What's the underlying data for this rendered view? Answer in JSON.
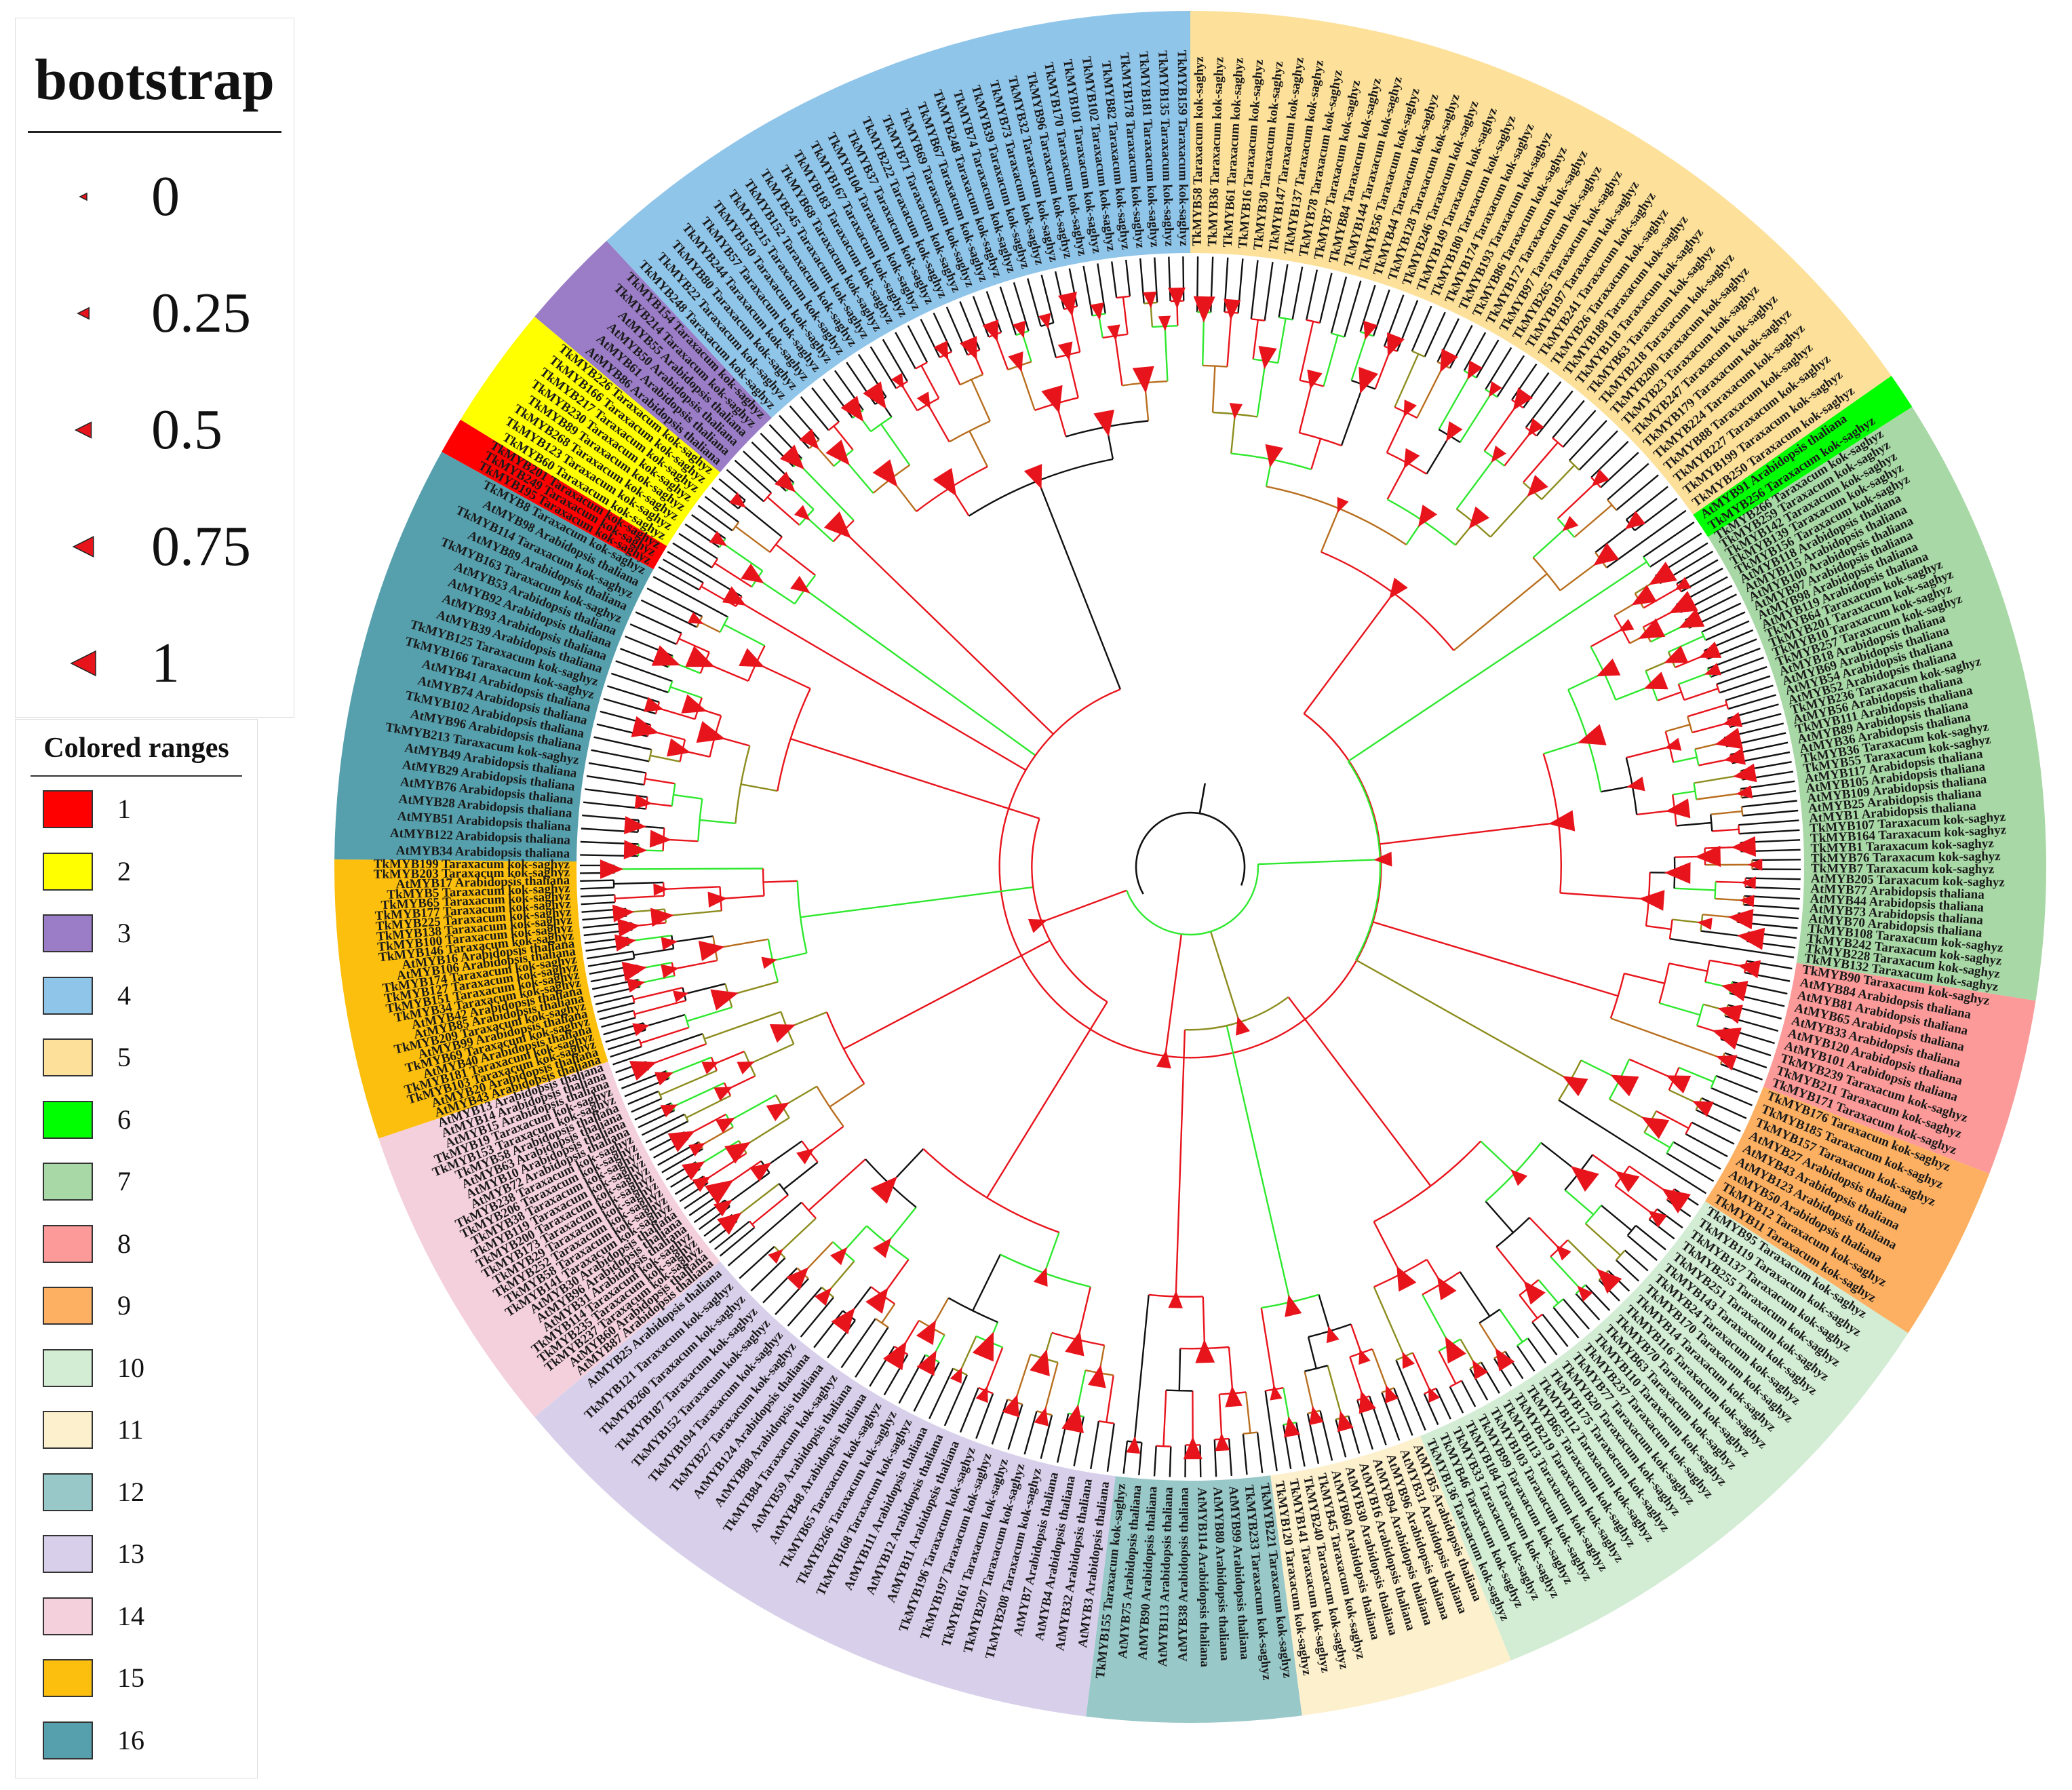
{
  "bootstrap_legend": {
    "title": "bootstrap",
    "entries": [
      {
        "label": "0",
        "value": 0
      },
      {
        "label": "0.25",
        "value": 0.25
      },
      {
        "label": "0.5",
        "value": 0.5
      },
      {
        "label": "0.75",
        "value": 0.75
      },
      {
        "label": "1",
        "value": 1
      }
    ],
    "marker_color": "#e8141c"
  },
  "colored_ranges_legend": {
    "title": "Colored ranges",
    "entries": [
      {
        "label": "1",
        "color": "#ff0000"
      },
      {
        "label": "2",
        "color": "#ffff00"
      },
      {
        "label": "3",
        "color": "#9a7dc6"
      },
      {
        "label": "4",
        "color": "#90c5ea"
      },
      {
        "label": "5",
        "color": "#fde19a"
      },
      {
        "label": "6",
        "color": "#00ff00"
      },
      {
        "label": "7",
        "color": "#a8d8a6"
      },
      {
        "label": "8",
        "color": "#fb9a99"
      },
      {
        "label": "9",
        "color": "#fdb062"
      },
      {
        "label": "10",
        "color": "#d3ecd4"
      },
      {
        "label": "11",
        "color": "#fdf0cd"
      },
      {
        "label": "12",
        "color": "#99c8c9"
      },
      {
        "label": "13",
        "color": "#d8d0ea"
      },
      {
        "label": "14",
        "color": "#f4d0dc"
      },
      {
        "label": "15",
        "color": "#fdbf0d"
      },
      {
        "label": "16",
        "color": "#56a0ad"
      }
    ]
  },
  "tree": {
    "branch_colors": {
      "high": "#e8141c",
      "mid": "#2ee82e",
      "brown": "#b86e1e",
      "olive": "#8c8c1e",
      "low": "#111111"
    },
    "clades": [
      {
        "group": 1,
        "start_deg": 299.0,
        "end_deg": 301.5,
        "labels": [
          "TkMYB195 Taraxacum kok-saghyz",
          "TkMYB249 Taraxacum kok-saghyz",
          "TkMYB201 Taraxacum kok-saghyz"
        ]
      },
      {
        "group": 2,
        "start_deg": 301.5,
        "end_deg": 310.0,
        "labels": [
          "TkMYB60 Taraxacum kok-saghyz",
          "TkMYB123 Taraxacum kok-saghyz",
          "TkMYB268 Taraxacum kok-saghyz",
          "TkMYB89 Taraxacum kok-saghyz",
          "TkMYB230 Taraxacum kok-saghyz",
          "TkMYB217 Taraxacum kok-saghyz",
          "TkMYB166 Taraxacum kok-saghyz",
          "TkMYB226 Taraxacum kok-saghyz"
        ]
      },
      {
        "group": 3,
        "start_deg": 310.0,
        "end_deg": 317.0,
        "labels": [
          "AtMYB86 Arabidopsis thaliana",
          "AtMYB61 Arabidopsis thaliana",
          "AtMYB50 Arabidopsis thaliana",
          "AtMYB55 Arabidopsis thaliana",
          "TkMYB214 Taraxacum kok-saghyz",
          "TkMYB154 Taraxacum kok-saghyz"
        ]
      },
      {
        "group": 4,
        "start_deg": 317.0,
        "end_deg": 360.0,
        "labels": [
          "TkMYB248 Taraxacum kok-saghyz",
          "TkMYB22 Taraxacum kok-saghyz",
          "TkMYB80 Taraxacum kok-saghyz",
          "TkMYB244 Taraxacum kok-saghyz",
          "TkMYB57 Taraxacum kok-saghyz",
          "TkMYB150 Taraxacum kok-saghyz",
          "TkMYB215 Taraxacum kok-saghyz",
          "TkMYB152 Taraxacum kok-saghyz",
          "TkMYB245 Taraxacum kok-saghyz",
          "TkMYB68 Taraxacum kok-saghyz",
          "TkMYB183 Taraxacum kok-saghyz",
          "TkMYB167 Taraxacum kok-saghyz",
          "TkMYB104 Taraxacum kok-saghyz",
          "TkMYB37 Taraxacum kok-saghyz",
          "TkMYB222 Taraxacum kok-saghyz",
          "TkMYB71 Taraxacum kok-saghyz",
          "TkMYB69 Taraxacum kok-saghyz",
          "TkMYB67 Taraxacum kok-saghyz",
          "TkMYB248 Taraxacum kok-saghyz",
          "TkMYB74 Taraxacum kok-saghyz",
          "TkMYB39 Taraxacum kok-saghyz",
          "TkMYB73 Taraxacum kok-saghyz",
          "TkMYB32 Taraxacum kok-saghyz",
          "TkMYB96 Taraxacum kok-saghyz",
          "TkMYB170 Taraxacum kok-saghyz",
          "TkMYB101 Taraxacum kok-saghyz",
          "TkMYB102 Taraxacum kok-saghyz",
          "TkMYB82 Taraxacum kok-saghyz",
          "TkMYB178 Taraxacum kok-saghyz",
          "TkMYB181 Taraxacum kok-saghyz",
          "TkMYB135 Taraxacum kok-saghyz",
          "TkMYB159 Taraxacum kok-saghyz"
        ]
      },
      {
        "group": 5,
        "start_deg": 0.0,
        "end_deg": 55.0,
        "labels": [
          "TkMYB58 Taraxacum kok-saghyz",
          "TkMYB36 Taraxacum kok-saghyz",
          "TkMYB61 Taraxacum kok-saghyz",
          "TkMYB16 Taraxacum kok-saghyz",
          "TkMYB30 Taraxacum kok-saghyz",
          "TkMYB147 Taraxacum kok-saghyz",
          "TkMYB137 Taraxacum kok-saghyz",
          "TkMYB78 Taraxacum kok-saghyz",
          "TkMYB7 Taraxacum kok-saghyz",
          "TkMYB84 Taraxacum kok-saghyz",
          "TkMYB144 Taraxacum kok-saghyz",
          "TkMYB56 Taraxacum kok-saghyz",
          "TkMYB44 Taraxacum kok-saghyz",
          "TkMYB128 Taraxacum kok-saghyz",
          "TkMYB246 Taraxacum kok-saghyz",
          "TkMYB149 Taraxacum kok-saghyz",
          "TkMYB180 Taraxacum kok-saghyz",
          "TkMYB174 Taraxacum kok-saghyz",
          "TkMYB193 Taraxacum kok-saghyz",
          "TkMYB86 Taraxacum kok-saghyz",
          "TkMYB172 Taraxacum kok-saghyz",
          "TkMYB97 Taraxacum kok-saghyz",
          "TkMYB265 Taraxacum kok-saghyz",
          "TkMYB197 Taraxacum kok-saghyz",
          "TkMYB241 Taraxacum kok-saghyz",
          "TkMYB26 Taraxacum kok-saghyz",
          "TkMYB188 Taraxacum kok-saghyz",
          "TkMYB118 Taraxacum kok-saghyz",
          "TkMYB63 Taraxacum kok-saghyz",
          "TkMYB218 Taraxacum kok-saghyz",
          "TkMYB200 Taraxacum kok-saghyz",
          "TkMYB23 Taraxacum kok-saghyz",
          "TkMYB247 Taraxacum kok-saghyz",
          "TkMYB179 Taraxacum kok-saghyz",
          "TkMYB224 Taraxacum kok-saghyz",
          "TkMYB88 Taraxacum kok-saghyz",
          "TkMYB227 Taraxacum kok-saghyz",
          "TkMYB199 Taraxacum kok-saghyz",
          "TkMYB250 Taraxacum kok-saghyz"
        ]
      },
      {
        "group": 6,
        "start_deg": 55.0,
        "end_deg": 57.5,
        "labels": [
          "AtMYB91 Arabidopsis thaliana",
          "TkMYB256 Taraxacum kok-saghyz"
        ]
      },
      {
        "group": 7,
        "start_deg": 57.5,
        "end_deg": 99.0,
        "labels": [
          "TkMYB266 Taraxacum kok-saghyz",
          "TkMYB259 Taraxacum kok-saghyz",
          "TkMYB142 Taraxacum kok-saghyz",
          "TkMYB139 Taraxacum kok-saghyz",
          "TkMYB156 Taraxacum kok-saghyz",
          "AtMYB118 Arabidopsis thaliana",
          "AtMYB115 Arabidopsis thaliana",
          "AtMYB100 Arabidopsis thaliana",
          "AtMYB97 Arabidopsis thaliana",
          "AtMYB98 Arabidopsis thaliana",
          "AtMYB119 Arabidopsis thaliana",
          "TkMYB64 Taraxacum kok-saghyz",
          "TkMYB201 Taraxacum kok-saghyz",
          "TkMYB10 Taraxacum kok-saghyz",
          "TkMYB257 Taraxacum kok-saghyz",
          "AtMYB18 Arabidopsis thaliana",
          "AtMYB69 Arabidopsis thaliana",
          "AtMYB54 Arabidopsis thaliana",
          "AtMYB52 Arabidopsis thaliana",
          "TkMYB236 Taraxacum kok-saghyz",
          "AtMYB56 Arabidopsis thaliana",
          "TkMYB111 Arabidopsis thaliana",
          "AtMYB89 Arabidopsis thaliana",
          "AtMYB36 Arabidopsis thaliana",
          "TkMYB36 Taraxacum kok-saghyz",
          "TkMYB55 Taraxacum kok-saghyz",
          "AtMYB117 Arabidopsis thaliana",
          "AtMYB105 Arabidopsis thaliana",
          "AtMYB109 Arabidopsis thaliana",
          "AtMYB25 Arabidopsis thaliana",
          "AtMYB1 Arabidopsis thaliana",
          "TkMYB107 Taraxacum kok-saghyz",
          "TkMYB164 Taraxacum kok-saghyz",
          "TkMYB1 Taraxacum kok-saghyz",
          "TkMYB76 Taraxacum kok-saghyz",
          "TkMYB7 Taraxacum kok-saghyz",
          "AtMYB205 Taraxacum kok-saghyz",
          "AtMYB77 Arabidopsis thaliana",
          "AtMYB44 Arabidopsis thaliana",
          "AtMYB73 Arabidopsis thaliana",
          "AtMYB70 Arabidopsis thaliana",
          "TkMYB108 Taraxacum kok-saghyz",
          "TkMYB242 Taraxacum kok-saghyz",
          "TkMYB228 Taraxacum kok-saghyz",
          "TkMYB132 Taraxacum kok-saghyz"
        ]
      },
      {
        "group": 8,
        "start_deg": 99.0,
        "end_deg": 111.0,
        "labels": [
          "TkMYB90 Taraxacum kok-saghyz",
          "AtMYB84 Arabidopsis thaliana",
          "AtMYB81 Arabidopsis thaliana",
          "AtMYB65 Arabidopsis thaliana",
          "AtMYB33 Arabidopsis thaliana",
          "AtMYB120 Arabidopsis thaliana",
          "AtMYB101 Arabidopsis thaliana",
          "TkMYB239 Taraxacum kok-saghyz",
          "TkMYB211 Taraxacum kok-saghyz",
          "TkMYB171 Taraxacum kok-saghyz"
        ]
      },
      {
        "group": 9,
        "start_deg": 111.0,
        "end_deg": 123.0,
        "labels": [
          "TkMYB176 Taraxacum kok-saghyz",
          "TkMYB185 Taraxacum kok-saghyz",
          "TkMYB157 Taraxacum kok-saghyz",
          "AtMYB27 Arabidopsis thaliana",
          "AtMYB43 Arabidopsis thaliana",
          "AtMYB123 Arabidopsis thaliana",
          "AtMYB50 Arabidopsis thaliana",
          "TkMYB12 Taraxacum kok-saghyz",
          "TkMYB11 Taraxacum kok-saghyz"
        ]
      },
      {
        "group": 10,
        "start_deg": 123.0,
        "end_deg": 158.0,
        "labels": [
          "TkMYB95 Taraxacum kok-saghyz",
          "TkMYB119 Taraxacum kok-saghyz",
          "TkMYB137 Taraxacum kok-saghyz",
          "TkMYB255 Taraxacum kok-saghyz",
          "TkMYB251 Taraxacum kok-saghyz",
          "TkMYB143 Taraxacum kok-saghyz",
          "TkMYB24 Taraxacum kok-saghyz",
          "TkMYB170 Taraxacum kok-saghyz",
          "TkMYB14 Taraxacum kok-saghyz",
          "TkMYB116 Taraxacum kok-saghyz",
          "TkMYB70 Taraxacum kok-saghyz",
          "TkMYB63 Taraxacum kok-saghyz",
          "TkMYB110 Taraxacum kok-saghyz",
          "TkMYB237 Taraxacum kok-saghyz",
          "TkMYB77 Taraxacum kok-saghyz",
          "TkMYB20 Taraxacum kok-saghyz",
          "TkMYB175 Taraxacum kok-saghyz",
          "TkMYB112 Taraxacum kok-saghyz",
          "TkMYB65 Taraxacum kok-saghyz",
          "TkMYB219 Taraxacum kok-saghyz",
          "TkMYB113 Taraxacum kok-saghyz",
          "TkMYB103 Taraxacum kok-saghyz",
          "TkMYB99 Taraxacum kok-saghyz",
          "TkMYB184 Taraxacum kok-saghyz",
          "TkMYB33 Taraxacum kok-saghyz",
          "TkMYB46 Taraxacum kok-saghyz",
          "TkMYB136 Taraxacum kok-saghyz"
        ]
      },
      {
        "group": 11,
        "start_deg": 158.0,
        "end_deg": 172.5,
        "labels": [
          "AtMYB5 Arabidopsis thaliana",
          "AtMYB31 Arabidopsis thaliana",
          "AtMYB96 Arabidopsis thaliana",
          "AtMYB94 Arabidopsis thaliana",
          "AtMYB16 Arabidopsis thaliana",
          "AtMYB30 Arabidopsis thaliana",
          "AtMYB60 Arabidopsis thaliana",
          "TkMYB45 Taraxacum kok-saghyz",
          "TkMYB240 Taraxacum kok-saghyz",
          "TkMYB141 Taraxacum kok-saghyz",
          "TkMYB120 Taraxacum kok-saghyz"
        ]
      },
      {
        "group": 12,
        "start_deg": 172.5,
        "end_deg": 187.0,
        "labels": [
          "TkMYB221 Taraxacum kok-saghyz",
          "TkMYB233 Taraxacum kok-saghyz",
          "AtMYB99 Arabidopsis thaliana",
          "AtMYB80 Arabidopsis thaliana",
          "AtMYB114 Arabidopsis thaliana",
          "AtMYB38 Arabidopsis thaliana",
          "AtMYB113 Arabidopsis thaliana",
          "AtMYB90 Arabidopsis thaliana",
          "AtMYB75 Arabidopsis thaliana",
          "TkMYB155 Taraxacum kok-saghyz"
        ]
      },
      {
        "group": 13,
        "start_deg": 187.0,
        "end_deg": 230.0,
        "labels": [
          "AtMYB3 Arabidopsis thaliana",
          "AtMYB32 Arabidopsis thaliana",
          "AtMYB4 Arabidopsis thaliana",
          "AtMYB7 Arabidopsis thaliana",
          "TkMYB208 Taraxacum kok-saghyz",
          "TkMYB207 Taraxacum kok-saghyz",
          "TkMYB161 Taraxacum kok-saghyz",
          "TkMYB197 Taraxacum kok-saghyz",
          "TkMYB196 Taraxacum kok-saghyz",
          "AtMYB11 Arabidopsis thaliana",
          "AtMYB12 Arabidopsis thaliana",
          "AtMYB111 Arabidopsis thaliana",
          "TkMYB168 Taraxacum kok-saghyz",
          "TkMYB266 Taraxacum kok-saghyz",
          "TkMYB65 Taraxacum kok-saghyz",
          "AtMYB48 Arabidopsis thaliana",
          "AtMYB59 Arabidopsis thaliana",
          "TkMYB84 Taraxacum kok-saghyz",
          "AtMYB88 Arabidopsis thaliana",
          "AtMYB124 Arabidopsis thaliana",
          "TkMYB27 Taraxacum kok-saghyz",
          "TkMYB194 Taraxacum kok-saghyz",
          "TkMYB152 Taraxacum kok-saghyz",
          "TkMYB187 Taraxacum kok-saghyz",
          "TkMYB260 Taraxacum kok-saghyz",
          "TkMYB121 Taraxacum kok-saghyz",
          "AtMYB25 Arabidopsis thaliana"
        ]
      },
      {
        "group": 14,
        "start_deg": 230.0,
        "end_deg": 251.5,
        "labels": [
          "AtMYB87 Arabidopsis thaliana",
          "AtMYB60 Arabidopsis thaliana",
          "TkMYB237 Taraxacum kok-saghyz",
          "TkMYB235 Taraxacum kok-saghyz",
          "TkMYB114 Taraxacum kok-saghyz",
          "AtMYB31 Arabidopsis thaliana",
          "AtMYB96 Arabidopsis thaliana",
          "AtMYB30 Arabidopsis thaliana",
          "TkMYB141 Taraxacum kok-saghyz",
          "TkMYB58 Taraxacum kok-saghyz",
          "TkMYB252 Taraxacum kok-saghyz",
          "TkMYB29 Taraxacum kok-saghyz",
          "TkMYB173 Taraxacum kok-saghyz",
          "TkMYB200 Taraxacum kok-saghyz",
          "TkMYB119 Taraxacum kok-saghyz",
          "TkMYB38 Taraxacum kok-saghyz",
          "TkMYB206 Taraxacum kok-saghyz",
          "TkMYB238 Taraxacum kok-saghyz",
          "AtMYB72 Arabidopsis thaliana",
          "AtMYB10 Arabidopsis thaliana",
          "AtMYB63 Arabidopsis thaliana",
          "TkMYB58 Arabidopsis thaliana",
          "TkMYB153 Taraxacum kok-saghyz",
          "TkMYB19 Taraxacum kok-saghyz",
          "AtMYB15 Arabidopsis thaliana",
          "AtMYB14 Arabidopsis thaliana",
          "AtMYB13 Arabidopsis thaliana"
        ]
      },
      {
        "group": 15,
        "start_deg": 251.5,
        "end_deg": 270.5,
        "labels": [
          "AtMYB43 Arabidopsis thaliana",
          "AtMYB20 Arabidopsis thaliana",
          "TkMYB103 Taraxacum kok-saghyz",
          "TkMYB181 Taraxacum kok-saghyz",
          "AtMYB40 Arabidopsis thaliana",
          "TkMYB69 Taraxacum kok-saghyz",
          "AtMYB99 Arabidopsis thaliana",
          "TkMYB209 Taraxacum kok-saghyz",
          "AtMYB85 Arabidopsis thaliana",
          "AtMYB42 Arabidopsis thaliana",
          "TkMYB34 Taraxacum kok-saghyz",
          "TkMYB151 Taraxacum kok-saghyz",
          "TkMYB127 Taraxacum kok-saghyz",
          "TkMYB174 Taraxacum kok-saghyz",
          "AtMYB106 Arabidopsis thaliana",
          "AtMYB16 Arabidopsis thaliana",
          "TkMYB146 Taraxacum kok-saghyz",
          "TkMYB100 Taraxacum kok-saghyz",
          "TkMYB138 Taraxacum kok-saghyz",
          "TkMYB225 Taraxacum kok-saghyz",
          "TkMYB177 Taraxacum kok-saghyz",
          "TkMYB65 Taraxacum kok-saghyz",
          "TkMYB5 Taraxacum kok-saghyz",
          "AtMYB17 Arabidopsis thaliana",
          "TkMYB203 Taraxacum kok-saghyz",
          "TkMYB199 Taraxacum kok-saghyz"
        ]
      },
      {
        "group": 16,
        "start_deg": 270.5,
        "end_deg": 299.0,
        "labels": [
          "AtMYB34 Arabidopsis thaliana",
          "AtMYB122 Arabidopsis thaliana",
          "AtMYB51 Arabidopsis thaliana",
          "AtMYB28 Arabidopsis thaliana",
          "AtMYB76 Arabidopsis thaliana",
          "AtMYB29 Arabidopsis thaliana",
          "AtMYB49 Arabidopsis thaliana",
          "TkMYB213 Taraxacum kok-saghyz",
          "AtMYB96 Arabidopsis thaliana",
          "TkMYB102 Arabidopsis thaliana",
          "AtMYB74 Arabidopsis thaliana",
          "AtMYB41 Arabidopsis thaliana",
          "TkMYB166 Taraxacum kok-saghyz",
          "TkMYB125 Taraxacum kok-saghyz",
          "AtMYB39 Arabidopsis thaliana",
          "AtMYB93 Arabidopsis thaliana",
          "AtMYB92 Arabidopsis thaliana",
          "AtMYB53 Arabidopsis thaliana",
          "TkMYB163 Taraxacum kok-saghyz",
          "AtMYB89 Arabidopsis thaliana",
          "TkMYB114 Taraxacum kok-saghyz",
          "AtMYB98 Arabidopsis thaliana",
          "TkMYB8 Taraxacum kok-saghyz"
        ]
      }
    ]
  }
}
